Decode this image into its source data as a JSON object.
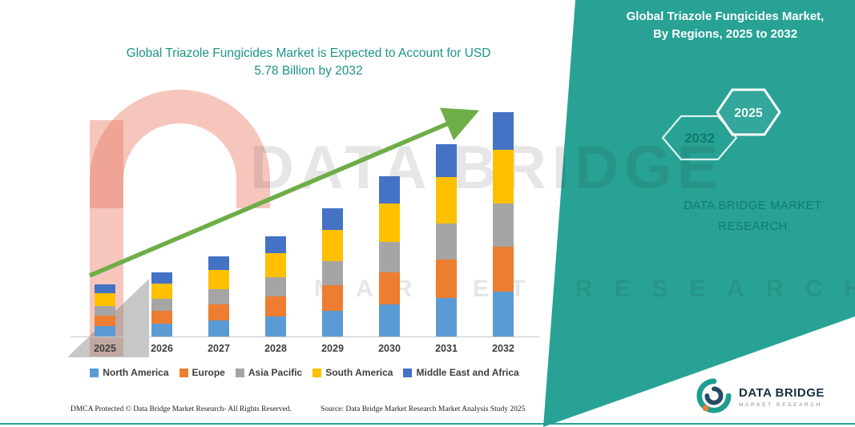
{
  "colors": {
    "panel_teal": "#27A295",
    "title_teal": "#1C9488",
    "arrow_green": "#6EAD47",
    "hex_label_dark": "#0E7A6C",
    "footer_navy": "#16313F"
  },
  "chart": {
    "title_line1": "Global Triazole Fungicides Market is Expected to Account for USD",
    "title_line2": "5.78 Billion by 2032"
  },
  "chart_data": {
    "type": "bar",
    "stacked": true,
    "title": "Global Triazole Fungicides Market is Expected to Account for USD 5.78 Billion by 2032",
    "xlabel": "",
    "ylabel": "",
    "value_axis_visible": false,
    "legend_position": "bottom",
    "units": "USD billion",
    "note": "Values estimated from bar heights; 2032 total stated as USD 5.78 billion",
    "categories": [
      "2025",
      "2026",
      "2027",
      "2028",
      "2029",
      "2030",
      "2031",
      "2032"
    ],
    "totals": [
      1.34,
      1.65,
      2.06,
      2.58,
      3.3,
      4.13,
      4.95,
      5.78
    ],
    "series": [
      {
        "name": "North America",
        "color": "#5B9BD5",
        "values": [
          0.27,
          0.33,
          0.41,
          0.52,
          0.66,
          0.83,
          0.99,
          1.16
        ]
      },
      {
        "name": "Europe",
        "color": "#ED7D31",
        "values": [
          0.27,
          0.33,
          0.41,
          0.52,
          0.66,
          0.83,
          0.99,
          1.16
        ]
      },
      {
        "name": "Asia Pacific",
        "color": "#A5A5A5",
        "values": [
          0.25,
          0.31,
          0.4,
          0.49,
          0.63,
          0.78,
          0.94,
          1.1
        ]
      },
      {
        "name": "South America",
        "color": "#FFC000",
        "values": [
          0.32,
          0.4,
          0.49,
          0.62,
          0.79,
          0.99,
          1.19,
          1.39
        ]
      },
      {
        "name": "Middle East and Africa",
        "color": "#4472C4",
        "values": [
          0.23,
          0.28,
          0.35,
          0.43,
          0.56,
          0.7,
          0.84,
          0.97
        ]
      }
    ],
    "annotations": [
      "upward green trend arrow across bars"
    ]
  },
  "panel": {
    "title_line1": "Global Triazole Fungicides Market,",
    "title_line2": "By Regions, 2025 to 2032",
    "hexagons": [
      {
        "label": "2032"
      },
      {
        "label": "2025"
      }
    ],
    "brand_line1": "DATA BRIDGE MARKET",
    "brand_line2": "RESEARCH"
  },
  "watermark": {
    "line1": "DATA BRIDGE",
    "line2": "MARKET RESEARCH"
  },
  "footer": {
    "dmca": "DMCA Protected © Data Bridge Market Research-  All Rights Reserved.",
    "source": "Source: Data Bridge Market Research  Market Analysis Study 2025"
  },
  "footer_logo": {
    "title": "DATA BRIDGE",
    "subtitle": "MARKET RESEARCH"
  }
}
